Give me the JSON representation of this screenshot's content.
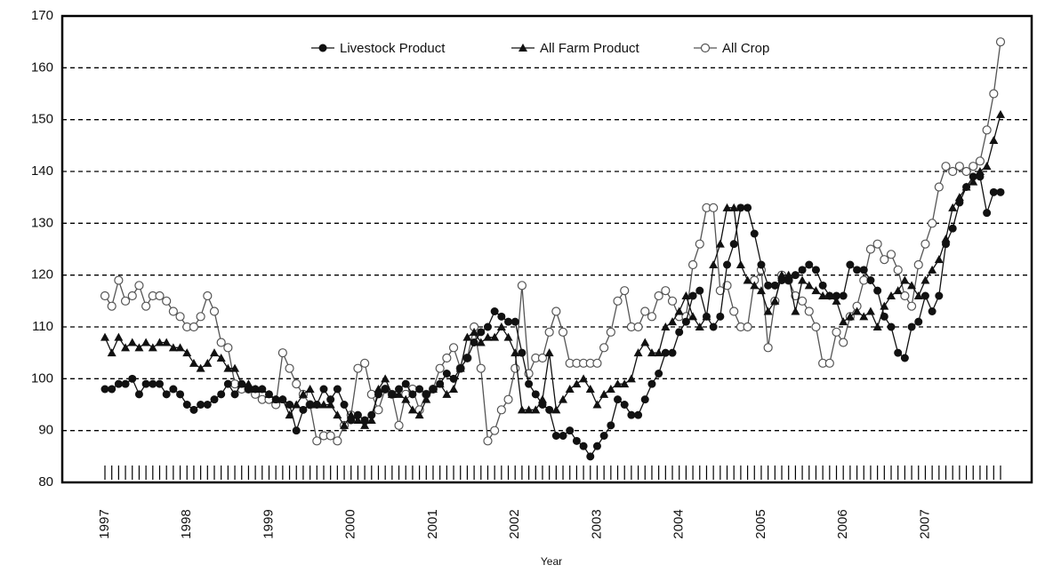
{
  "chart_data": {
    "type": "line",
    "x_label": "Year",
    "categories": [
      "1997",
      null,
      null,
      null,
      null,
      null,
      null,
      null,
      null,
      null,
      null,
      null,
      "1998",
      null,
      null,
      null,
      null,
      null,
      null,
      null,
      null,
      null,
      null,
      null,
      "1999",
      null,
      null,
      null,
      null,
      null,
      null,
      null,
      null,
      null,
      null,
      null,
      "2000",
      null,
      null,
      null,
      null,
      null,
      null,
      null,
      null,
      null,
      null,
      null,
      "2001",
      null,
      null,
      null,
      null,
      null,
      null,
      null,
      null,
      null,
      null,
      null,
      "2002",
      null,
      null,
      null,
      null,
      null,
      null,
      null,
      null,
      null,
      null,
      null,
      "2003",
      null,
      null,
      null,
      null,
      null,
      null,
      null,
      null,
      null,
      null,
      null,
      "2004",
      null,
      null,
      null,
      null,
      null,
      null,
      null,
      null,
      null,
      null,
      null,
      "2005",
      null,
      null,
      null,
      null,
      null,
      null,
      null,
      null,
      null,
      null,
      null,
      "2006",
      null,
      null,
      null,
      null,
      null,
      null,
      null,
      null,
      null,
      null,
      null,
      "2007",
      null,
      null,
      null,
      null,
      null,
      null,
      null,
      null,
      null,
      null,
      null
    ],
    "series": [
      {
        "name": "Livestock Product",
        "color": "#111111",
        "marker": "filled-circle",
        "values": [
          98,
          98,
          99,
          99,
          100,
          97,
          99,
          99,
          99,
          97,
          98,
          97,
          95,
          94,
          95,
          95,
          96,
          97,
          99,
          97,
          99,
          98,
          98,
          98,
          97,
          96,
          96,
          95,
          90,
          94,
          95,
          95,
          98,
          96,
          98,
          95,
          92,
          93,
          92,
          93,
          97,
          98,
          97,
          98,
          99,
          97,
          98,
          97,
          98,
          99,
          101,
          100,
          102,
          104,
          107,
          109,
          110,
          113,
          112,
          111,
          111,
          105,
          99,
          97,
          95,
          94,
          89,
          89,
          90,
          88,
          87,
          85,
          87,
          89,
          91,
          96,
          95,
          93,
          93,
          96,
          99,
          101,
          105,
          105,
          109,
          111,
          116,
          117,
          112,
          110,
          112,
          122,
          126,
          133,
          133,
          128,
          122,
          118,
          118,
          119,
          119,
          120,
          121,
          122,
          121,
          118,
          116,
          116,
          116,
          122,
          121,
          121,
          119,
          117,
          112,
          110,
          105,
          104,
          110,
          111,
          116,
          113,
          116,
          126,
          129,
          134,
          137,
          139,
          139,
          132,
          136,
          136
        ]
      },
      {
        "name": "All Farm Product",
        "color": "#111111",
        "marker": "triangle",
        "values": [
          108,
          105,
          108,
          106,
          107,
          106,
          107,
          106,
          107,
          107,
          106,
          106,
          105,
          103,
          102,
          103,
          105,
          104,
          102,
          102,
          99,
          99,
          98,
          98,
          97,
          96,
          96,
          93,
          95,
          97,
          98,
          95,
          95,
          95,
          93,
          91,
          93,
          92,
          91,
          92,
          98,
          100,
          97,
          97,
          96,
          94,
          93,
          96,
          98,
          99,
          97,
          98,
          102,
          108,
          109,
          107,
          108,
          108,
          110,
          108,
          105,
          94,
          94,
          94,
          96,
          105,
          94,
          96,
          98,
          99,
          100,
          98,
          95,
          97,
          98,
          99,
          99,
          100,
          105,
          107,
          105,
          105,
          110,
          111,
          113,
          116,
          112,
          110,
          112,
          122,
          126,
          133,
          133,
          122,
          119,
          118,
          117,
          113,
          115,
          120,
          120,
          113,
          119,
          118,
          117,
          116,
          116,
          115,
          111,
          112,
          113,
          112,
          113,
          110,
          114,
          116,
          117,
          119,
          118,
          116,
          119,
          121,
          123,
          127,
          133,
          135,
          137,
          138,
          140,
          141,
          146,
          151
        ]
      },
      {
        "name": "All Crop",
        "color": "#555555",
        "marker": "open-circle",
        "values": [
          116,
          114,
          119,
          115,
          116,
          118,
          114,
          116,
          116,
          115,
          113,
          112,
          110,
          110,
          112,
          116,
          113,
          107,
          106,
          99,
          98,
          98,
          97,
          96,
          96,
          95,
          105,
          102,
          99,
          97,
          95,
          88,
          89,
          89,
          88,
          91,
          93,
          102,
          103,
          97,
          94,
          98,
          97,
          91,
          97,
          98,
          94,
          97,
          98,
          102,
          104,
          106,
          102,
          104,
          110,
          102,
          88,
          90,
          94,
          96,
          102,
          118,
          101,
          104,
          104,
          109,
          113,
          109,
          103,
          103,
          103,
          103,
          103,
          106,
          109,
          115,
          117,
          110,
          110,
          113,
          112,
          116,
          117,
          115,
          112,
          112,
          122,
          126,
          133,
          133,
          117,
          118,
          113,
          110,
          110,
          119,
          121,
          106,
          115,
          120,
          119,
          116,
          115,
          113,
          110,
          103,
          103,
          109,
          107,
          112,
          114,
          119,
          125,
          126,
          123,
          124,
          121,
          116,
          114,
          122,
          126,
          130,
          137,
          141,
          140,
          141,
          140,
          141,
          142,
          148,
          155,
          165
        ]
      }
    ],
    "ylim": [
      80,
      170
    ],
    "yticks": [
      80,
      90,
      100,
      110,
      120,
      130,
      140,
      150,
      160,
      170
    ],
    "grid": true,
    "legend": "top"
  }
}
